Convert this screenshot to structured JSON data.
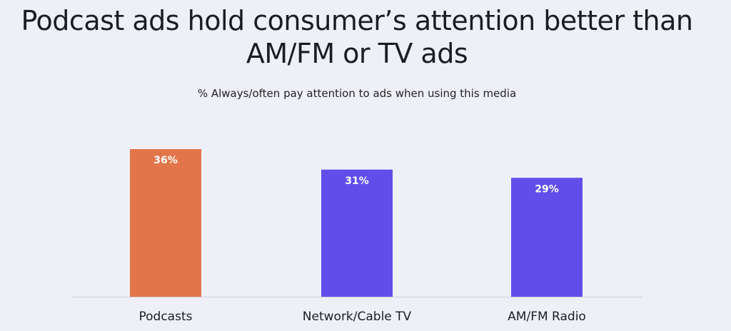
{
  "chart_data": {
    "type": "bar",
    "title": "Podcast ads hold consumer’s attention better than AM/FM or TV ads",
    "subtitle": "% Always/often pay attention to ads when using this media",
    "categories": [
      "Podcasts",
      "Network/Cable TV",
      "AM/FM Radio"
    ],
    "values": [
      36,
      31,
      29
    ],
    "value_labels": [
      "36%",
      "31%",
      "29%"
    ],
    "colors": [
      "#e2764a",
      "#614eea",
      "#614eea"
    ]
  }
}
